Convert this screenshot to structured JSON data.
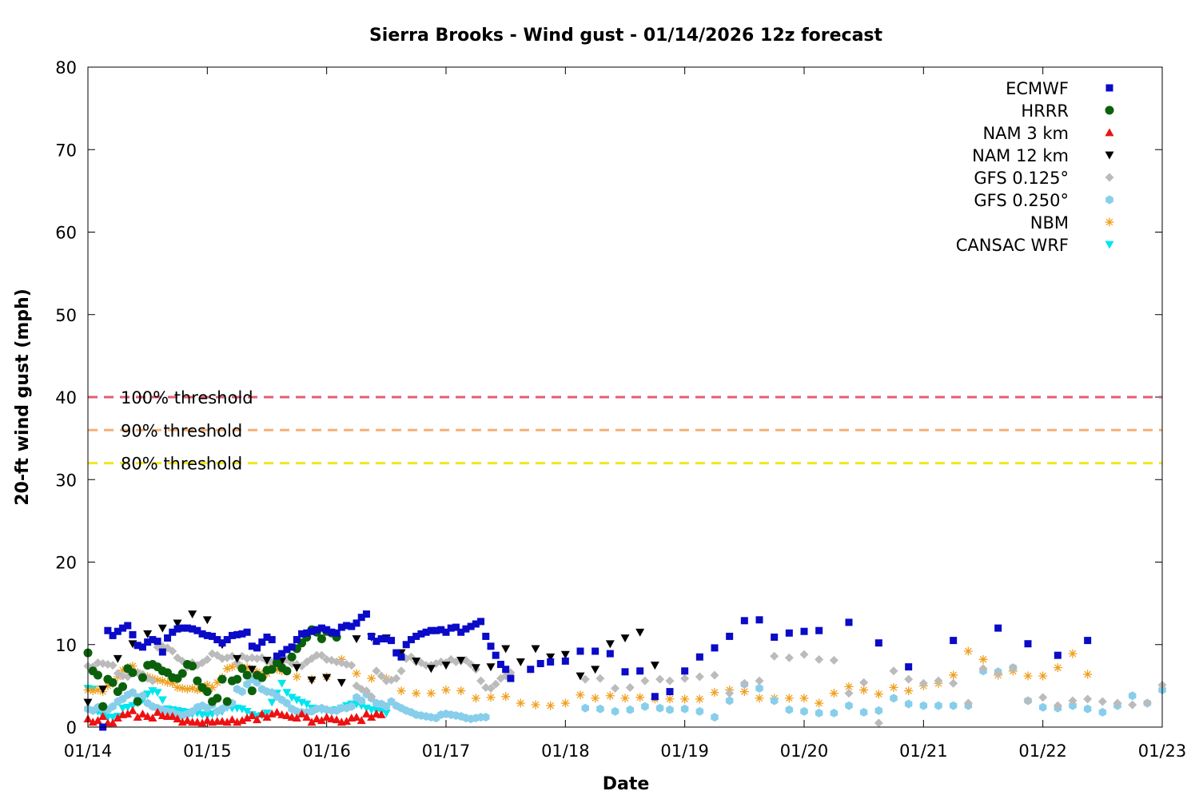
{
  "chart_data": {
    "type": "scatter",
    "title": "Sierra Brooks - Wind gust - 01/14/2026 12z forecast",
    "xlabel": "Date",
    "ylabel": "20-ft wind gust (mph)",
    "x_range": [
      "01/14 00:00",
      "01/23 00:00"
    ],
    "ylim": [
      0,
      80
    ],
    "y_ticks": [
      "0",
      "10",
      "20",
      "30",
      "40",
      "50",
      "60",
      "70",
      "80"
    ],
    "x_ticks": [
      "01/14",
      "01/15",
      "01/16",
      "01/17",
      "01/18",
      "01/19",
      "01/20",
      "01/21",
      "01/22",
      "01/23"
    ],
    "grid": false,
    "legend_position": "top-right",
    "thresholds": [
      {
        "label": "100% threshold",
        "value": 40,
        "color": "#e05c73"
      },
      {
        "label": "90% threshold",
        "value": 36,
        "color": "#f5b077"
      },
      {
        "label": "80% threshold",
        "value": 32,
        "color": "#f0e81c"
      }
    ],
    "series": [
      {
        "name": "ECMWF",
        "color": "#0a0ac8",
        "marker": "square",
        "hour_offset": 3,
        "x_step_hours": 1,
        "values": [
          0,
          11.7,
          11.1,
          11.6,
          12,
          12.3,
          11.2,
          9.9,
          9.7,
          10.3,
          10.6,
          10.4,
          9.1,
          10.8,
          11.5,
          11.9,
          12,
          12,
          11.9,
          11.7,
          11.3,
          11.1,
          11,
          10.6,
          10.2,
          10.6,
          11.1,
          11.2,
          11.3,
          11.5,
          9.8,
          9.6,
          10.3,
          10.9,
          10.6,
          8.6,
          8.9,
          9.4,
          9.7,
          10.6,
          11.3,
          11.4,
          11.6,
          11.8,
          12,
          11.8,
          11.5,
          11.4,
          12.1,
          12.3,
          12.2,
          12.6,
          13.3,
          13.7,
          11,
          10.4,
          10.7,
          10.7,
          10.5,
          9,
          8.5,
          10,
          10.6,
          11,
          11.3,
          11.5,
          11.7,
          11.7,
          11.8,
          11.5,
          12,
          12.1,
          11.5,
          11.9,
          12.2,
          12.5,
          12.8,
          11,
          9.8,
          8.7,
          7.6,
          7,
          5.9
        ]
      },
      {
        "name": "HRRR",
        "color": "#0b610b",
        "marker": "circle",
        "hour_offset": 0,
        "x_step_hours": 1,
        "values": [
          9,
          6.8,
          6.3,
          2.5,
          5.8,
          5.4,
          4.3,
          4.9,
          7.1,
          6.6,
          3.1,
          6,
          7.5,
          7.6,
          7.3,
          6.8,
          6.6,
          6,
          5.9,
          6.5,
          7.6,
          7.4,
          5.6,
          4.8,
          4.3,
          3.1,
          3.5,
          5.8,
          3.1,
          5.6,
          5.8,
          7.1,
          6.3,
          4.4,
          6.3,
          6,
          6.9,
          7,
          7.8,
          7.2,
          6.8,
          8.5,
          9.5,
          10.2,
          10.9,
          11.8,
          11.5,
          10.7,
          11.6,
          11.4,
          10.9
        ]
      },
      {
        "name": "NAM 3 km",
        "color": "#ee1111",
        "marker": "triangle-up",
        "hour_offset": 0,
        "x_step_hours": 1,
        "values": [
          1,
          0.6,
          0.8,
          1.3,
          0.5,
          0.5,
          1.1,
          1.5,
          1.6,
          2,
          1.2,
          1.6,
          1.3,
          1.1,
          1.8,
          1.4,
          1.3,
          1.3,
          1,
          0.6,
          0.8,
          0.6,
          0.6,
          0.5,
          0.8,
          0.6,
          0.7,
          0.7,
          0.6,
          0.9,
          0.6,
          0.8,
          1.1,
          1.4,
          0.9,
          1.6,
          1.2,
          1.6,
          1.8,
          1.5,
          1.4,
          1.2,
          1.1,
          1.6,
          1.2,
          0.6,
          1,
          0.8,
          1.2,
          1,
          0.9,
          0.6,
          0.7,
          1.1,
          1.2,
          0.8,
          1.6,
          1.2,
          1.6,
          1.5
        ]
      },
      {
        "name": "NAM 12 km",
        "color": "#000000",
        "marker": "triangle-down",
        "hour_offset": 0,
        "x_step_hours": 3,
        "values": [
          3,
          4.6,
          8.3,
          10.1,
          11.3,
          12,
          12.6,
          13.7,
          13,
          10,
          8.3,
          7,
          8.1,
          8,
          7.2,
          5.7,
          6,
          5.4,
          10.7,
          10.9,
          10.8,
          9,
          8,
          7.1,
          7.5,
          8.1,
          7.2,
          7.3,
          9.5,
          7.9,
          9.5,
          8.5,
          8.8,
          6.2,
          7,
          10.1,
          10.8,
          11.5,
          7.5
        ]
      },
      {
        "name": "GFS 0.125°",
        "color": "#bbbbbb",
        "marker": "diamond",
        "hour_offset": 0,
        "x_step_hours": 1,
        "values": [
          7.4,
          7.3,
          7.8,
          7.7,
          7.6,
          7.5,
          6.5,
          6.2,
          6.1,
          6.7,
          6.6,
          6.4,
          5.9,
          5.6,
          9.7,
          9.8,
          9.6,
          9.2,
          8.4,
          8,
          7.3,
          7.8,
          7.5,
          7.8,
          8.2,
          8.9,
          8.7,
          8.3,
          8.4,
          8.6,
          7.8,
          8.6,
          8.3,
          8.4,
          8.3,
          8.4,
          8,
          7.9,
          7.7,
          7.9,
          8.2,
          7.7,
          7.6,
          7.4,
          7.9,
          8.3,
          8.7,
          8.7,
          8.2,
          8.1,
          7.9,
          7.8,
          7.6,
          7.5,
          5,
          4.6,
          4.4,
          3.7,
          6.8,
          6.2,
          5.6,
          5.7,
          5.9,
          6.8,
          8.3,
          8.5,
          7.9,
          7.8,
          7.5,
          7.5,
          7.7,
          7.9,
          7.8,
          8.2,
          7.9,
          8,
          8.1,
          7.6,
          7,
          5.6,
          4.8,
          4.7,
          5.2,
          5.9,
          6.2,
          6.6
        ]
      },
      {
        "name": "GFS 0.250°",
        "color": "#87ceeb",
        "marker": "hexagon",
        "hour_offset": 0,
        "x_step_hours": 1,
        "values": [
          2.2,
          2,
          2.4,
          2.2,
          2.1,
          2.5,
          3.1,
          3.4,
          3.9,
          4.2,
          3.6,
          3.8,
          2.9,
          2.5,
          2.3,
          2.1,
          1.9,
          1.8,
          1.5,
          1.4,
          1.6,
          1.9,
          2.4,
          2.6,
          2.3,
          2.7,
          1.9,
          2.2,
          2.6,
          2.9,
          4.6,
          4.3,
          5.2,
          5.8,
          5.4,
          4.6,
          4.3,
          4.2,
          3.7,
          3.3,
          2.9,
          2.2,
          1.9,
          1.8,
          1.8,
          1.9,
          2.2,
          2.3,
          2.1,
          2,
          2,
          2.3,
          2.3,
          2.5,
          3.6,
          3.2,
          4,
          3.5,
          2.9,
          2.8,
          2.5,
          3.1,
          2.6,
          2.3,
          2,
          1.8,
          1.5,
          1.4,
          1.3,
          1.2,
          1.1,
          1.5,
          1.6,
          1.5,
          1.4,
          1.3,
          1.1,
          1,
          1.1,
          1.2,
          1.2
        ]
      },
      {
        "name": "NBM",
        "color": "#f0a020",
        "marker": "asterisk",
        "hour_offset": 0,
        "x_step_hours": 1,
        "values": [
          4.5,
          4.4,
          4.5,
          4.3,
          5,
          5.3,
          6.1,
          6.9,
          7.2,
          7.4,
          6.6,
          6.2,
          6.1,
          5.9,
          5.7,
          5.6,
          5.4,
          5.3,
          4.8,
          4.7,
          4.6,
          4.7,
          4.5,
          4.6,
          5.1,
          4.8,
          5.4,
          6,
          7.1,
          7.3,
          7.6,
          7.3,
          7.2,
          7,
          6.7,
          6.4,
          6.5,
          7.3,
          7,
          6.8
        ]
      },
      {
        "name": "CANSAC WRF",
        "color": "#00e5ee",
        "marker": "triangle-down",
        "hour_offset": 0,
        "x_step_hours": 1,
        "values": [
          4.7,
          4.6,
          1.9,
          1.4,
          1.2,
          1.2,
          1.3,
          2.3,
          2.4,
          2.6,
          2.9,
          3.3,
          4,
          4.4,
          4.2,
          3.3,
          2.2,
          2.1,
          2,
          1.9,
          1.8,
          1.6,
          1.7,
          1.5,
          1.4,
          1.6,
          1.7,
          1.9,
          2.4,
          2.3,
          2.3,
          2.2,
          1.9,
          1.5,
          1.3,
          1.4,
          1.7,
          3,
          4.1,
          5.3,
          4.2,
          3.6,
          3.3,
          3,
          2.8,
          2.3,
          2.2,
          2.1,
          2,
          2,
          2.1,
          2.3,
          2.6,
          2.8,
          2.8,
          2.6,
          2.3,
          2.1,
          2,
          1.9,
          1.7
        ]
      }
    ],
    "sparse_series": [
      {
        "name": "ECMWF",
        "points": [
          [
            89,
            7
          ],
          [
            91,
            7.7
          ],
          [
            93,
            7.9
          ],
          [
            96,
            8
          ],
          [
            99,
            9.2
          ],
          [
            102,
            9.2
          ],
          [
            105,
            8.9
          ],
          [
            108,
            6.7
          ],
          [
            111,
            6.8
          ],
          [
            114,
            3.7
          ],
          [
            117,
            4.3
          ],
          [
            120,
            6.8
          ],
          [
            123,
            8.5
          ],
          [
            126,
            9.6
          ],
          [
            129,
            11
          ],
          [
            132,
            12.9
          ],
          [
            135,
            13
          ],
          [
            138,
            10.9
          ],
          [
            141,
            11.4
          ],
          [
            144,
            11.6
          ],
          [
            147,
            11.7
          ],
          [
            153,
            12.7
          ],
          [
            159,
            10.2
          ],
          [
            165,
            7.3
          ],
          [
            174,
            10.5
          ],
          [
            183,
            12
          ],
          [
            189,
            10.1
          ],
          [
            195,
            8.7
          ],
          [
            201,
            10.5
          ]
        ]
      },
      {
        "name": "GFS 0.125°",
        "points": [
          [
            100,
            5.8
          ],
          [
            103,
            5.9
          ],
          [
            106,
            4.7
          ],
          [
            109,
            4.8
          ],
          [
            112,
            5.6
          ],
          [
            115,
            5.8
          ],
          [
            117,
            5.6
          ],
          [
            120,
            5.9
          ],
          [
            123,
            6.1
          ],
          [
            126,
            6.3
          ],
          [
            129,
            4.1
          ],
          [
            132,
            5.3
          ],
          [
            135,
            5.6
          ],
          [
            138,
            8.6
          ],
          [
            141,
            8.4
          ],
          [
            144,
            8.8
          ],
          [
            147,
            8.2
          ],
          [
            150,
            8.1
          ],
          [
            153,
            4.1
          ],
          [
            156,
            5.4
          ],
          [
            159,
            0.5
          ],
          [
            162,
            6.8
          ],
          [
            165,
            5.8
          ],
          [
            168,
            5.3
          ],
          [
            171,
            5.6
          ],
          [
            174,
            5.3
          ],
          [
            177,
            2.9
          ],
          [
            180,
            7.1
          ],
          [
            183,
            6.5
          ],
          [
            186,
            7.2
          ],
          [
            189,
            3.2
          ],
          [
            192,
            3.6
          ],
          [
            195,
            2.6
          ],
          [
            198,
            3.2
          ],
          [
            201,
            3.4
          ],
          [
            204,
            3.1
          ],
          [
            207,
            2.9
          ],
          [
            210,
            2.7
          ],
          [
            213,
            2.9
          ],
          [
            216,
            5.1
          ]
        ]
      },
      {
        "name": "GFS 0.250°",
        "points": [
          [
            100,
            2.3
          ],
          [
            103,
            2.2
          ],
          [
            106,
            1.9
          ],
          [
            109,
            2.1
          ],
          [
            112,
            2.5
          ],
          [
            115,
            2.3
          ],
          [
            117,
            2.1
          ],
          [
            120,
            2.2
          ],
          [
            123,
            1.9
          ],
          [
            126,
            1.2
          ],
          [
            129,
            3.2
          ],
          [
            132,
            5.2
          ],
          [
            135,
            4.7
          ],
          [
            138,
            3.2
          ],
          [
            141,
            2.1
          ],
          [
            144,
            1.9
          ],
          [
            147,
            1.7
          ],
          [
            150,
            1.7
          ],
          [
            153,
            2.6
          ],
          [
            156,
            1.8
          ],
          [
            159,
            2
          ],
          [
            162,
            3.5
          ],
          [
            165,
            2.8
          ],
          [
            168,
            2.6
          ],
          [
            171,
            2.6
          ],
          [
            174,
            2.6
          ],
          [
            177,
            2.6
          ],
          [
            180,
            6.8
          ],
          [
            183,
            6.7
          ],
          [
            186,
            7.2
          ],
          [
            189,
            3.2
          ],
          [
            192,
            2.4
          ],
          [
            195,
            2.3
          ],
          [
            198,
            2.6
          ],
          [
            201,
            2.2
          ],
          [
            204,
            1.8
          ],
          [
            207,
            2.6
          ],
          [
            210,
            3.8
          ],
          [
            213,
            2.9
          ],
          [
            216,
            4.5
          ]
        ]
      },
      {
        "name": "NBM",
        "points": [
          [
            42,
            6.1
          ],
          [
            45,
            5.8
          ],
          [
            48,
            6.1
          ],
          [
            51,
            8.2
          ],
          [
            54,
            6.5
          ],
          [
            57,
            5.9
          ],
          [
            60,
            5.9
          ],
          [
            63,
            4.4
          ],
          [
            66,
            4.1
          ],
          [
            69,
            4.1
          ],
          [
            72,
            4.5
          ],
          [
            75,
            4.4
          ],
          [
            78,
            3.5
          ],
          [
            81,
            3.6
          ],
          [
            84,
            3.7
          ],
          [
            87,
            2.9
          ],
          [
            90,
            2.7
          ],
          [
            93,
            2.6
          ],
          [
            96,
            2.9
          ],
          [
            99,
            3.9
          ],
          [
            102,
            3.5
          ],
          [
            105,
            3.8
          ],
          [
            108,
            3.5
          ],
          [
            111,
            3.6
          ],
          [
            114,
            3.4
          ],
          [
            117,
            3.4
          ],
          [
            120,
            3.4
          ],
          [
            123,
            3.4
          ],
          [
            126,
            4.2
          ],
          [
            129,
            4.5
          ],
          [
            132,
            4.3
          ],
          [
            135,
            3.5
          ],
          [
            138,
            3.5
          ],
          [
            141,
            3.5
          ],
          [
            144,
            3.5
          ],
          [
            147,
            2.9
          ],
          [
            150,
            4.1
          ],
          [
            153,
            4.9
          ],
          [
            156,
            4.5
          ],
          [
            159,
            4
          ],
          [
            162,
            4.8
          ],
          [
            165,
            4.4
          ],
          [
            168,
            5
          ],
          [
            171,
            5.3
          ],
          [
            174,
            6.3
          ],
          [
            177,
            9.2
          ],
          [
            180,
            8.2
          ],
          [
            183,
            6.3
          ],
          [
            186,
            6.8
          ],
          [
            189,
            6.2
          ],
          [
            192,
            6.2
          ],
          [
            195,
            7.2
          ],
          [
            198,
            8.9
          ],
          [
            201,
            6.4
          ]
        ]
      }
    ]
  }
}
